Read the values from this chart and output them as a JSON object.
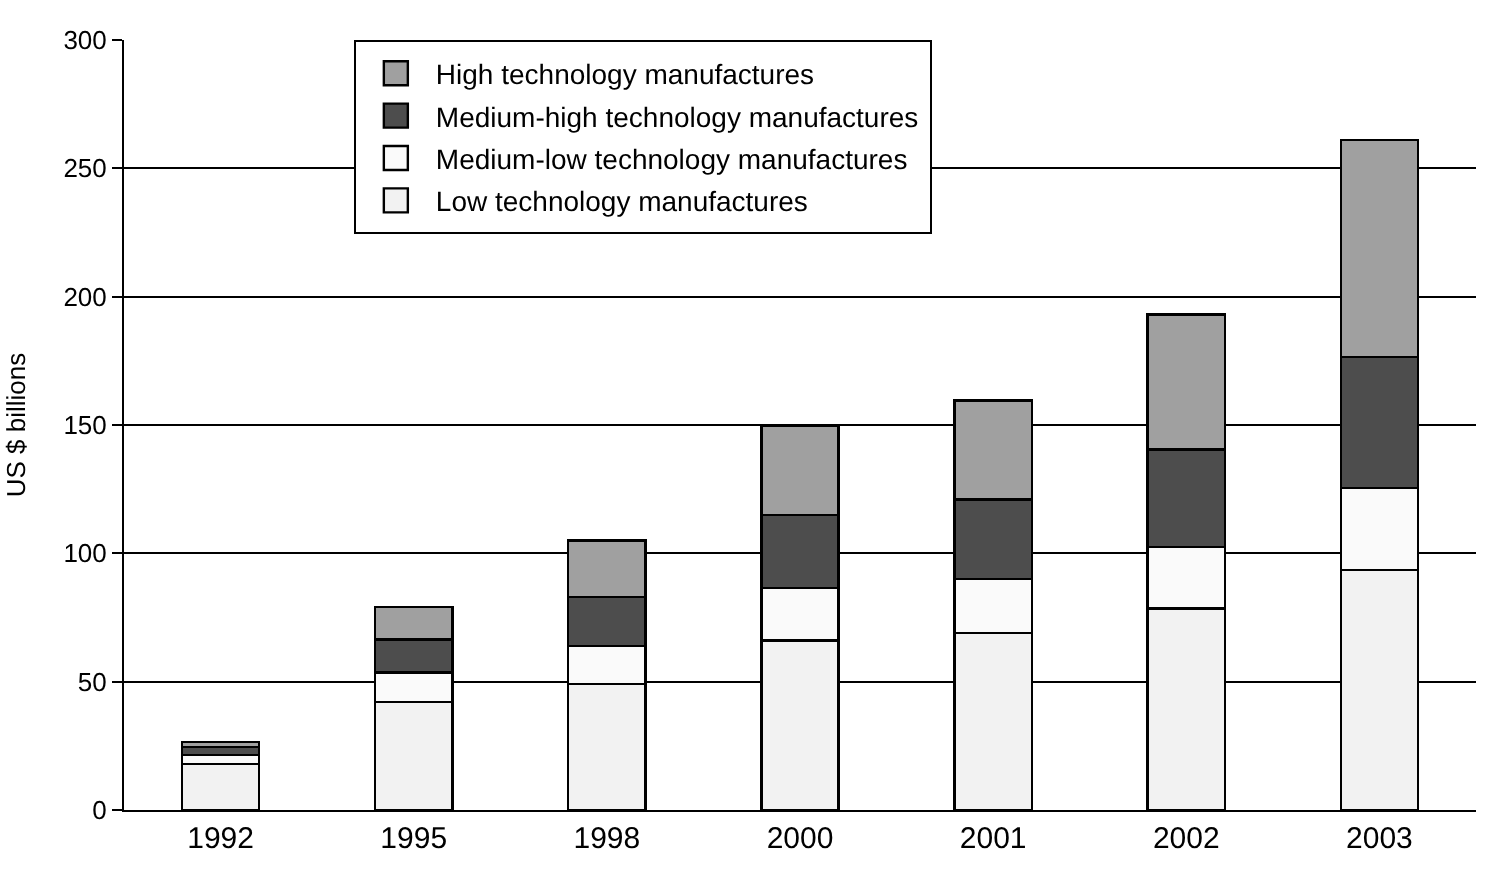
{
  "chart_data": {
    "type": "bar",
    "stacked": true,
    "ylabel": "US $ billions",
    "categories": [
      "1992",
      "1995",
      "1998",
      "2000",
      "2001",
      "2002",
      "2003"
    ],
    "series": [
      {
        "name": "Low technology manufactures",
        "color": "#f2f2f2",
        "values": [
          18,
          42,
          49,
          66,
          69,
          78.5,
          93.5
        ]
      },
      {
        "name": "Medium-low technology manufactures",
        "color": "#fafafa",
        "values": [
          3.5,
          11.5,
          15,
          20.5,
          21,
          24,
          32
        ]
      },
      {
        "name": "Medium-high technology manufactures",
        "color": "#4d4d4d",
        "values": [
          3,
          13,
          19,
          28.5,
          31,
          38,
          51
        ]
      },
      {
        "name": "High technology manufactures",
        "color": "#a0a0a0",
        "values": [
          2,
          12.5,
          22,
          34.5,
          38.5,
          52.5,
          84.5
        ]
      }
    ],
    "ylim": [
      0,
      300
    ],
    "yticks": [
      0,
      50,
      100,
      150,
      200,
      250,
      300
    ],
    "grid": "y",
    "legend": "top left"
  }
}
